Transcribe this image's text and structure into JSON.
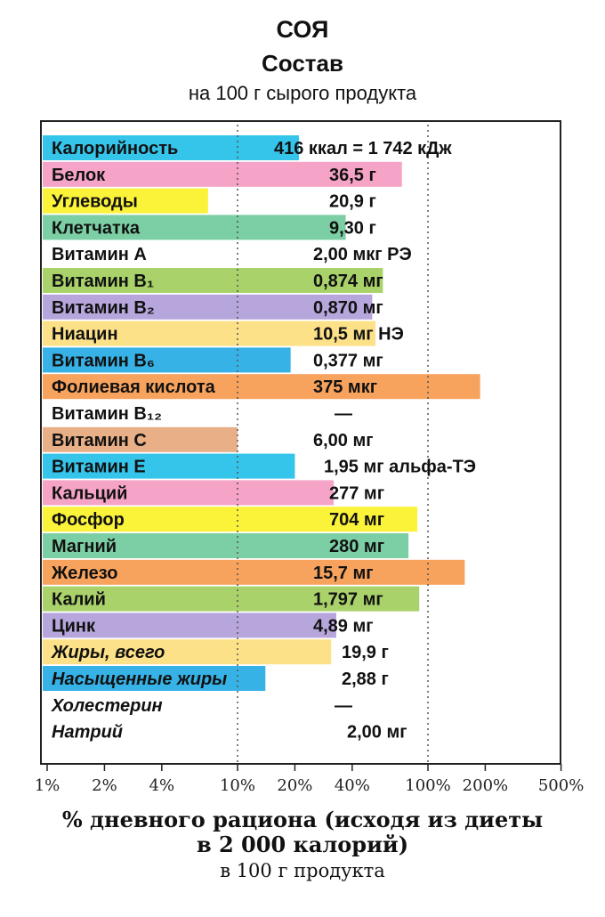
{
  "header": {
    "title": "СОЯ",
    "subtitle": "Состав",
    "note": "на 100 г сырого продукта"
  },
  "footer": {
    "line1": "% дневного рациона (исходя из диеты",
    "line2": "в 2 000 калорий)",
    "line3": "в 100 г продукта"
  },
  "chart_data": {
    "type": "bar",
    "orientation": "horizontal",
    "x_scale": "log",
    "xlim": [
      0.8,
      620
    ],
    "x_ticks": [
      {
        "value": 1,
        "label": "1%"
      },
      {
        "value": 2,
        "label": "2%"
      },
      {
        "value": 4,
        "label": "4%"
      },
      {
        "value": 10,
        "label": "10%"
      },
      {
        "value": 20,
        "label": "20%"
      },
      {
        "value": 40,
        "label": "40%"
      },
      {
        "value": 100,
        "label": "100%"
      },
      {
        "value": 200,
        "label": "200%"
      },
      {
        "value": 500,
        "label": "500%"
      }
    ],
    "gridlines_dotted": [
      10,
      100
    ],
    "rows": [
      {
        "name": "Калорийность",
        "value_text": "416 ккал = 1 742 кДж",
        "pct": 21,
        "color": "#35c4ea",
        "italic": false
      },
      {
        "name": "Белок",
        "value_text": "36,5 г",
        "pct": 73,
        "color": "#f5a3c7",
        "italic": false
      },
      {
        "name": "Углеводы",
        "value_text": "20,9 г",
        "pct": 7,
        "color": "#fbf23a",
        "italic": false
      },
      {
        "name": "Клетчатка",
        "value_text": "9,30 г",
        "pct": 37,
        "color": "#7ccfa4",
        "italic": false
      },
      {
        "name": "Витамин А",
        "value_text": "2,00 мкг РЭ",
        "pct": 0,
        "color": "#ffffff",
        "italic": false
      },
      {
        "name": "Витамин В₁",
        "value_text": "0,874 мг",
        "pct": 58,
        "color": "#a9d26a",
        "italic": false
      },
      {
        "name": "Витамин В₂",
        "value_text": "0,870 мг",
        "pct": 51,
        "color": "#b7a6dc",
        "italic": false
      },
      {
        "name": "Ниацин",
        "value_text": "10,5 мг НЭ",
        "pct": 53,
        "color": "#fde189",
        "italic": false
      },
      {
        "name": "Витамин В₆",
        "value_text": "0,377 мг",
        "pct": 19,
        "color": "#36b2e6",
        "italic": false
      },
      {
        "name": "Фолиевая кислота",
        "value_text": "375 мкг",
        "pct": 188,
        "color": "#f7a35e",
        "italic": false
      },
      {
        "name": "Витамин В₁₂",
        "value_text": "—",
        "pct": 0,
        "color": "#ffffff",
        "italic": false
      },
      {
        "name": "Витамин С",
        "value_text": "6,00 мг",
        "pct": 10,
        "color": "#e9b087",
        "italic": false
      },
      {
        "name": "Витамин Е",
        "value_text": "1,95 мг альфа-ТЭ",
        "pct": 20,
        "color": "#35c4ea",
        "italic": false
      },
      {
        "name": "Кальций",
        "value_text": "277 мг",
        "pct": 32,
        "color": "#f5a3c7",
        "italic": false
      },
      {
        "name": "Фосфор",
        "value_text": "704 мг",
        "pct": 88,
        "color": "#fbf23a",
        "italic": false
      },
      {
        "name": "Магний",
        "value_text": "280 мг",
        "pct": 79,
        "color": "#7ccfa4",
        "italic": false
      },
      {
        "name": "Железо",
        "value_text": "15,7 мг",
        "pct": 156,
        "color": "#f7a35e",
        "italic": false
      },
      {
        "name": "Калий",
        "value_text": "1,797 мг",
        "pct": 90,
        "color": "#a9d26a",
        "italic": false
      },
      {
        "name": "Цинк",
        "value_text": "4,89 мг",
        "pct": 33,
        "color": "#b7a6dc",
        "italic": false
      },
      {
        "name": "Жиры, всего",
        "value_text": "19,9 г",
        "pct": 31,
        "color": "#fde189",
        "italic": true
      },
      {
        "name": "Насыщенные жиры",
        "value_text": "2,88 г",
        "pct": 14,
        "color": "#36b2e6",
        "italic": true
      },
      {
        "name": "Холестерин",
        "value_text": "—",
        "pct": 0,
        "color": "#ffffff",
        "italic": true
      },
      {
        "name": "Натрий",
        "value_text": "2,00 мг",
        "pct": 0,
        "color": "#ffffff",
        "italic": true
      }
    ]
  }
}
